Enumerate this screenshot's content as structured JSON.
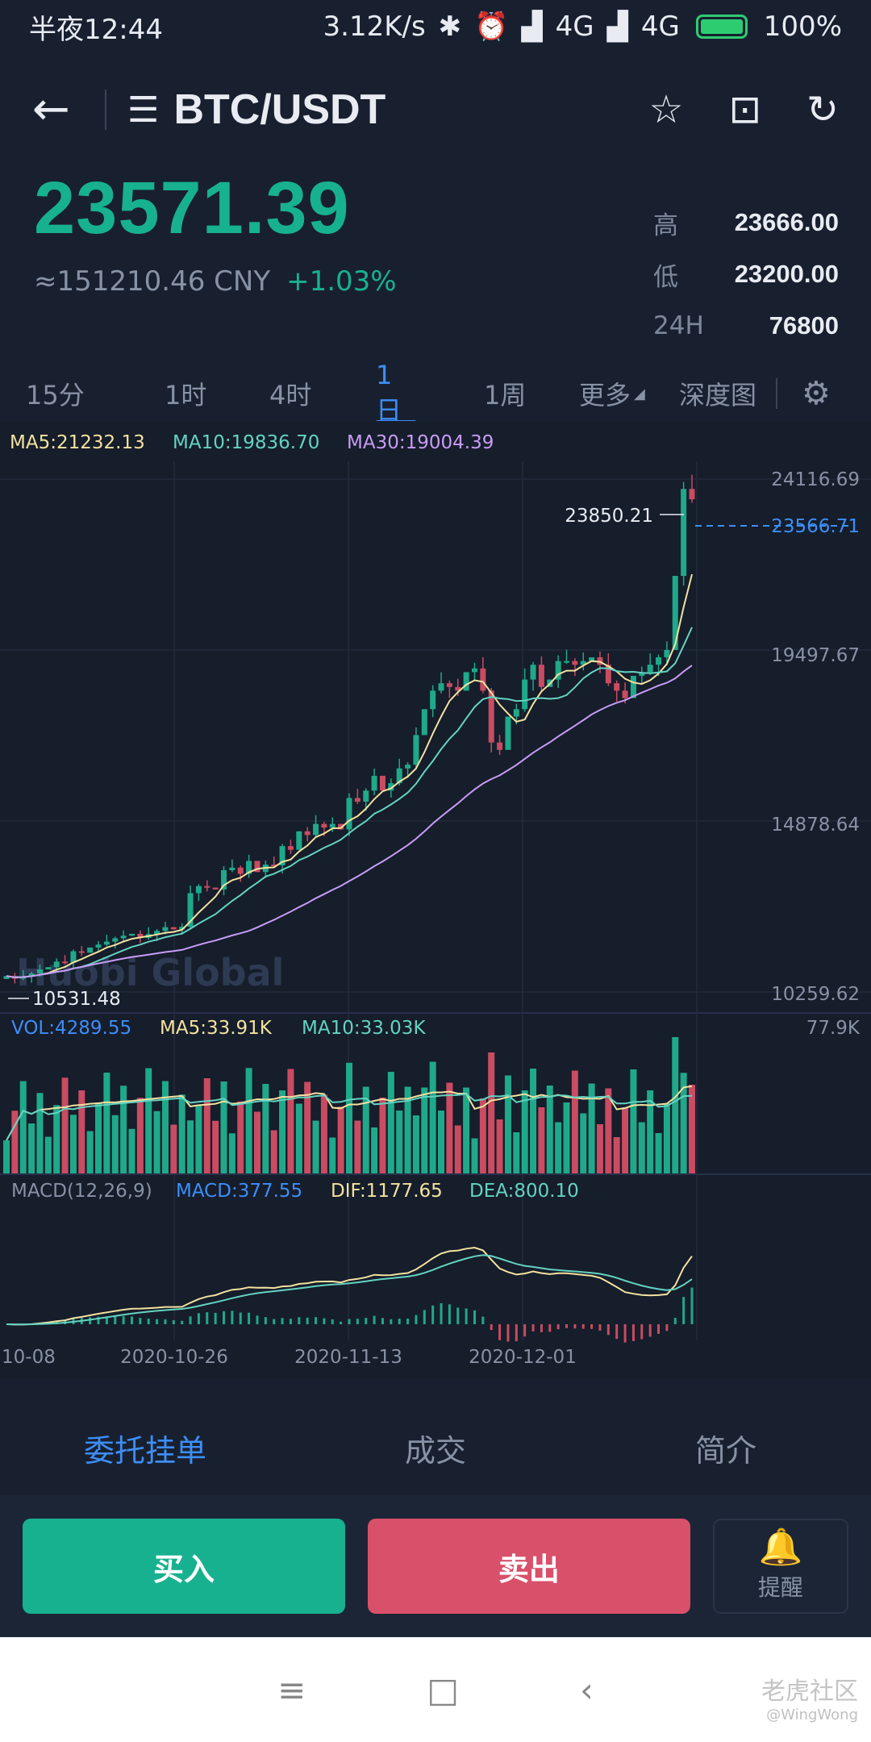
{
  "status_bar": {
    "time": "半夜12:44",
    "net_speed": "3.12K/s",
    "signal_1": "4G",
    "signal_2": "4G",
    "battery": "100%"
  },
  "header": {
    "pair": "BTC/USDT"
  },
  "ticker": {
    "price": "23571.39",
    "cny": "≈151210.46 CNY",
    "change": "+1.03%",
    "high_label": "高",
    "high": "23666.00",
    "low_label": "低",
    "low": "23200.00",
    "vol_label": "24H",
    "vol": "76800"
  },
  "interval_tabs": [
    "15分",
    "1时",
    "4时",
    "1日",
    "1周",
    "更多",
    "深度图"
  ],
  "active_interval": "1日",
  "chart_data": {
    "type": "candlestick",
    "watermark": "Huobi Global",
    "ma_legend": {
      "ma5": "MA5:21232.13",
      "ma10": "MA10:19836.70",
      "ma30": "MA30:19004.39"
    },
    "price_axis": [
      "24116.69",
      "19497.67",
      "14878.64",
      "10259.62"
    ],
    "ylim": [
      10259.62,
      24116.69
    ],
    "last_price": "23566.71",
    "high_marker": "23850.21",
    "low_marker": "10531.48",
    "vol_legend": {
      "vol": "VOL:4289.55",
      "ma5": "MA5:33.91K",
      "ma10": "MA10:33.03K"
    },
    "vol_max": "77.9K",
    "macd_legend": {
      "label": "MACD(12,26,9)",
      "macd": "MACD:377.55",
      "dif": "DIF:1177.65",
      "dea": "DEA:800.10"
    },
    "date_labels": [
      "10-08",
      "2020-10-26",
      "2020-11-13",
      "2020-12-01"
    ],
    "colors": {
      "up": "#1fa98a",
      "down": "#c94c62",
      "ma5": "#f3e2a0",
      "ma10": "#63d3c2",
      "ma30": "#c79cf5",
      "last": "#3d8ef7"
    },
    "closes": [
      10690,
      10620,
      10680,
      10760,
      10870,
      10930,
      11080,
      11050,
      11360,
      11320,
      11460,
      11540,
      11620,
      11710,
      11780,
      11830,
      11720,
      11820,
      11910,
      12010,
      11950,
      12020,
      12930,
      13120,
      13080,
      13030,
      13550,
      13620,
      13450,
      13800,
      13500,
      13700,
      13680,
      14200,
      14100,
      14600,
      14500,
      14800,
      14700,
      14800,
      14650,
      15500,
      15400,
      15700,
      16100,
      15700,
      15900,
      16300,
      16400,
      17200,
      17900,
      18400,
      18600,
      18500,
      18400,
      18900,
      19000,
      18400,
      17000,
      16800,
      17700,
      17900,
      18700,
      19100,
      18500,
      18700,
      19200,
      19200,
      19100,
      19200,
      19300,
      19100,
      18600,
      18400,
      18200,
      18800,
      18900,
      19100,
      19300,
      19500,
      21500,
      23850,
      23570
    ]
  },
  "section_tabs": [
    "委托挂单",
    "成交",
    "简介"
  ],
  "buttons": {
    "buy": "买入",
    "sell": "卖出",
    "alert": "提醒"
  },
  "watermark": {
    "brand": "老虎社区",
    "user": "@WingWong"
  }
}
